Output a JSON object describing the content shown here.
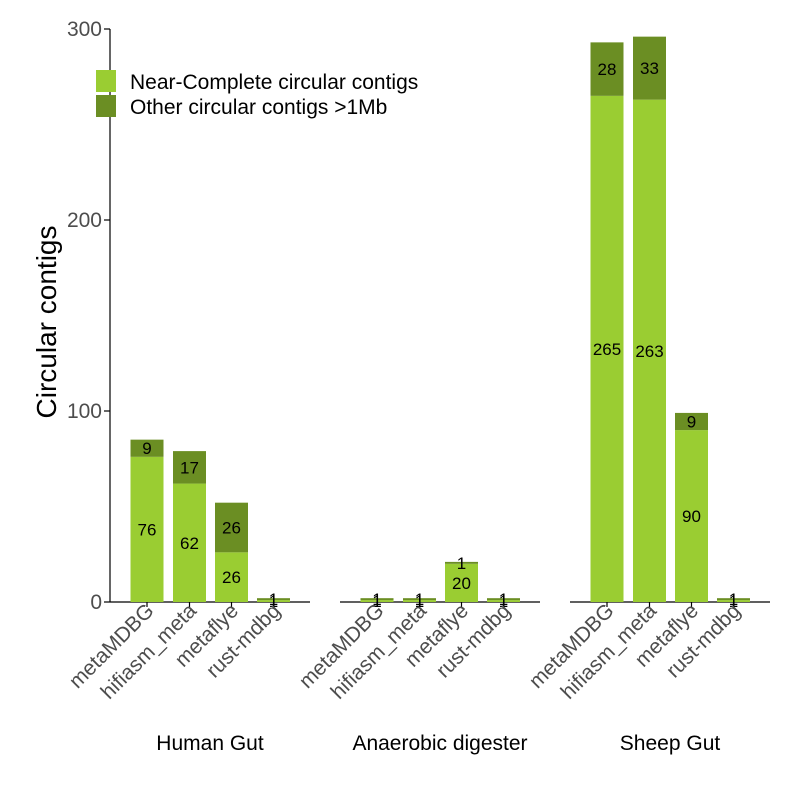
{
  "chart_data": {
    "type": "bar",
    "stacked": true,
    "ylabel": "Circular contigs",
    "ylim": [
      0,
      300
    ],
    "yticks": [
      0,
      100,
      200,
      300
    ],
    "grid": false,
    "legend_position": "top-left",
    "series": [
      {
        "name": "Near-Complete circular contigs",
        "color": "#9ACD32"
      },
      {
        "name": "Other circular contigs >1Mb",
        "color": "#6B8E23"
      }
    ],
    "panels": [
      {
        "label": "Human Gut",
        "categories": [
          "metaMDBG",
          "hifiasm_meta",
          "metaflye",
          "rust-mdbg"
        ],
        "values": [
          [
            76,
            62,
            26,
            1
          ],
          [
            9,
            17,
            26,
            1
          ]
        ]
      },
      {
        "label": "Anaerobic digester",
        "categories": [
          "metaMDBG",
          "hifiasm_meta",
          "metaflye",
          "rust-mdbg"
        ],
        "values": [
          [
            1,
            1,
            20,
            1
          ],
          [
            1,
            1,
            1,
            1
          ]
        ]
      },
      {
        "label": "Sheep Gut",
        "categories": [
          "metaMDBG",
          "hifiasm_meta",
          "metaflye",
          "rust-mdbg"
        ],
        "values": [
          [
            265,
            263,
            90,
            1
          ],
          [
            28,
            33,
            9,
            1
          ]
        ]
      }
    ]
  }
}
